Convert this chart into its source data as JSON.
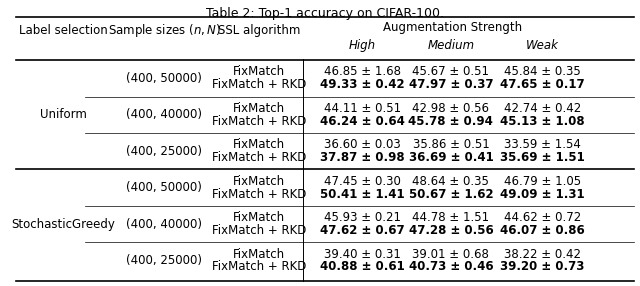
{
  "title": "Table 2: Top-1 accuracy on CIFAR-100.",
  "col_headers": [
    "Label selection",
    "Sample sizes (n, N)",
    "SSL algorithm",
    "Augmentation Strength"
  ],
  "aug_subheaders": [
    "High",
    "Medium",
    "Weak"
  ],
  "rows": [
    {
      "label_selection": "Uniform",
      "sample_size": "(400, 50000)",
      "algo1": "FixMatch",
      "algo2": "FixMatch + RKD",
      "high1": "46.85 ± 1.68",
      "medium1": "45.67 ± 0.51",
      "weak1": "45.84 ± 0.35",
      "high2": "49.33 ± 0.42",
      "medium2": "47.97 ± 0.37",
      "weak2": "47.65 ± 0.17"
    },
    {
      "label_selection": "",
      "sample_size": "(400, 40000)",
      "algo1": "FixMatch",
      "algo2": "FixMatch + RKD",
      "high1": "44.11 ± 0.51",
      "medium1": "42.98 ± 0.56",
      "weak1": "42.74 ± 0.42",
      "high2": "46.24 ± 0.64",
      "medium2": "45.78 ± 0.94",
      "weak2": "45.13 ± 1.08"
    },
    {
      "label_selection": "",
      "sample_size": "(400, 25000)",
      "algo1": "FixMatch",
      "algo2": "FixMatch + RKD",
      "high1": "36.60 ± 0.03",
      "medium1": "35.86 ± 0.51",
      "weak1": "33.59 ± 1.54",
      "high2": "37.87 ± 0.98",
      "medium2": "36.69 ± 0.41",
      "weak2": "35.69 ± 1.51"
    },
    {
      "label_selection": "StochasticGreedy",
      "sample_size": "(400, 50000)",
      "algo1": "FixMatch",
      "algo2": "FixMatch + RKD",
      "high1": "47.45 ± 0.30",
      "medium1": "48.64 ± 0.35",
      "weak1": "46.79 ± 1.05",
      "high2": "50.41 ± 1.41",
      "medium2": "50.67 ± 1.62",
      "weak2": "49.09 ± 1.31"
    },
    {
      "label_selection": "",
      "sample_size": "(400, 40000)",
      "algo1": "FixMatch",
      "algo2": "FixMatch + RKD",
      "high1": "45.93 ± 0.21",
      "medium1": "44.78 ± 1.51",
      "weak1": "44.62 ± 0.72",
      "high2": "47.62 ± 0.67",
      "medium2": "47.28 ± 0.56",
      "weak2": "46.07 ± 0.86"
    },
    {
      "label_selection": "",
      "sample_size": "(400, 25000)",
      "algo1": "FixMatch",
      "algo2": "FixMatch + RKD",
      "high1": "39.40 ± 0.31",
      "medium1": "39.01 ± 0.68",
      "weak1": "38.22 ± 0.42",
      "high2": "40.88 ± 0.61",
      "medium2": "40.73 ± 0.46",
      "weak2": "39.20 ± 0.73"
    }
  ],
  "label_group_rows": [
    0,
    3
  ],
  "label_group_labels": [
    "Uniform",
    "StochasticGreedy"
  ],
  "thick_divider_after": [
    2
  ],
  "background_color": "#ffffff",
  "text_color": "#000000",
  "font_size": 8.5
}
